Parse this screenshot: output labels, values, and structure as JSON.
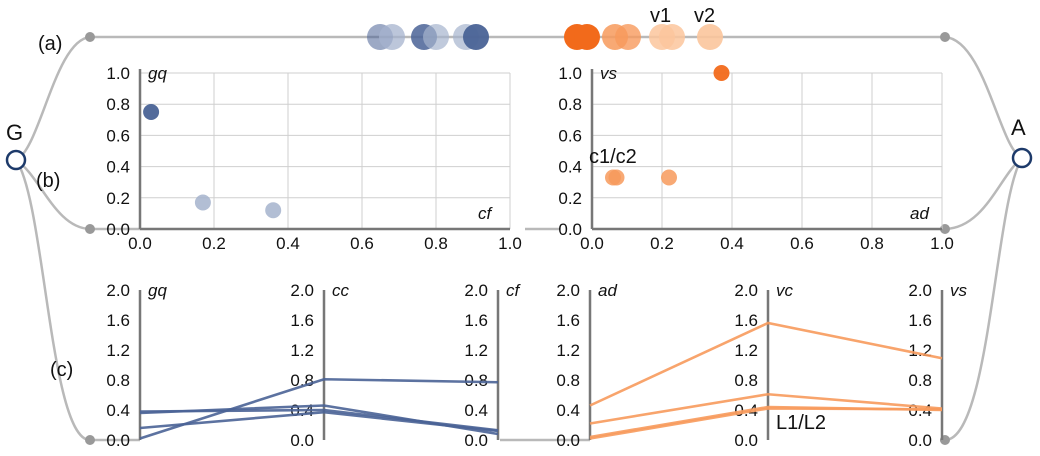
{
  "nodes": {
    "left": "G",
    "right": "A"
  },
  "rows": {
    "a": "(a)",
    "b": "(b)",
    "c": "(c)"
  },
  "colors": {
    "blue": "#4a6396",
    "blue_light": "#a5b3cd",
    "orange": "#f26a1b",
    "orange_mid": "#f79a5c",
    "orange_light": "#fbc59c",
    "connector": "#b9b9b9",
    "grid": "#cfcfcf",
    "node_ring": "#1d3a6a"
  },
  "row_a": {
    "blue_dots": 6,
    "orange_dots": 7,
    "labels": [
      "v1",
      "v2"
    ]
  },
  "chart_data": [
    {
      "type": "scatter",
      "panel": "(b) left",
      "xlabel": "cf",
      "ylabel": "gq",
      "xlim": [
        0,
        1
      ],
      "ylim": [
        0,
        1
      ],
      "xticks": [
        "0.0",
        "0.2",
        "0.4",
        "0.6",
        "0.8",
        "1.0"
      ],
      "yticks": [
        "0.0",
        "0.2",
        "0.4",
        "0.6",
        "0.8",
        "1.0"
      ],
      "grid": true,
      "points": [
        {
          "x": 0.03,
          "y": 0.75,
          "shade": "dark"
        },
        {
          "x": 0.17,
          "y": 0.17,
          "shade": "light"
        },
        {
          "x": 0.36,
          "y": 0.12,
          "shade": "light"
        }
      ]
    },
    {
      "type": "scatter",
      "panel": "(b) right",
      "xlabel": "ad",
      "ylabel": "vs",
      "xlim": [
        0,
        1
      ],
      "ylim": [
        0,
        1
      ],
      "xticks": [
        "0.0",
        "0.2",
        "0.4",
        "0.6",
        "0.8",
        "1.0"
      ],
      "yticks": [
        "0.0",
        "0.2",
        "0.4",
        "0.6",
        "0.8",
        "1.0"
      ],
      "grid": true,
      "annotation": "c1/c2",
      "points": [
        {
          "x": 0.37,
          "y": 1.0,
          "shade": "dark"
        },
        {
          "x": 0.06,
          "y": 0.33,
          "shade": "light"
        },
        {
          "x": 0.07,
          "y": 0.33,
          "shade": "light"
        },
        {
          "x": 0.22,
          "y": 0.33,
          "shade": "light"
        }
      ]
    },
    {
      "type": "line",
      "panel": "(c) left",
      "axes": [
        "gq",
        "cc",
        "cf"
      ],
      "ylim": [
        0,
        2
      ],
      "ticks": [
        "2.0",
        "1.6",
        "1.2",
        "0.8",
        "0.4",
        "0.0"
      ],
      "series": [
        {
          "values": [
            0.36,
            0.46,
            0.08
          ]
        },
        {
          "values": [
            0.16,
            0.37,
            0.12
          ]
        },
        {
          "values": [
            0.02,
            0.81,
            0.77
          ]
        },
        {
          "values": [
            0.38,
            0.4,
            0.13
          ]
        }
      ]
    },
    {
      "type": "line",
      "panel": "(c) right",
      "axes": [
        "ad",
        "vc",
        "vs"
      ],
      "ylim": [
        0,
        2
      ],
      "ticks": [
        "2.0",
        "1.6",
        "1.2",
        "0.8",
        "0.4",
        "0.0"
      ],
      "annotation": "L1/L2",
      "series": [
        {
          "values": [
            0.46,
            1.56,
            1.09
          ]
        },
        {
          "values": [
            0.22,
            0.61,
            0.42
          ]
        },
        {
          "values": [
            0.04,
            0.44,
            0.4
          ]
        },
        {
          "values": [
            0.02,
            0.42,
            0.41
          ]
        }
      ]
    }
  ]
}
